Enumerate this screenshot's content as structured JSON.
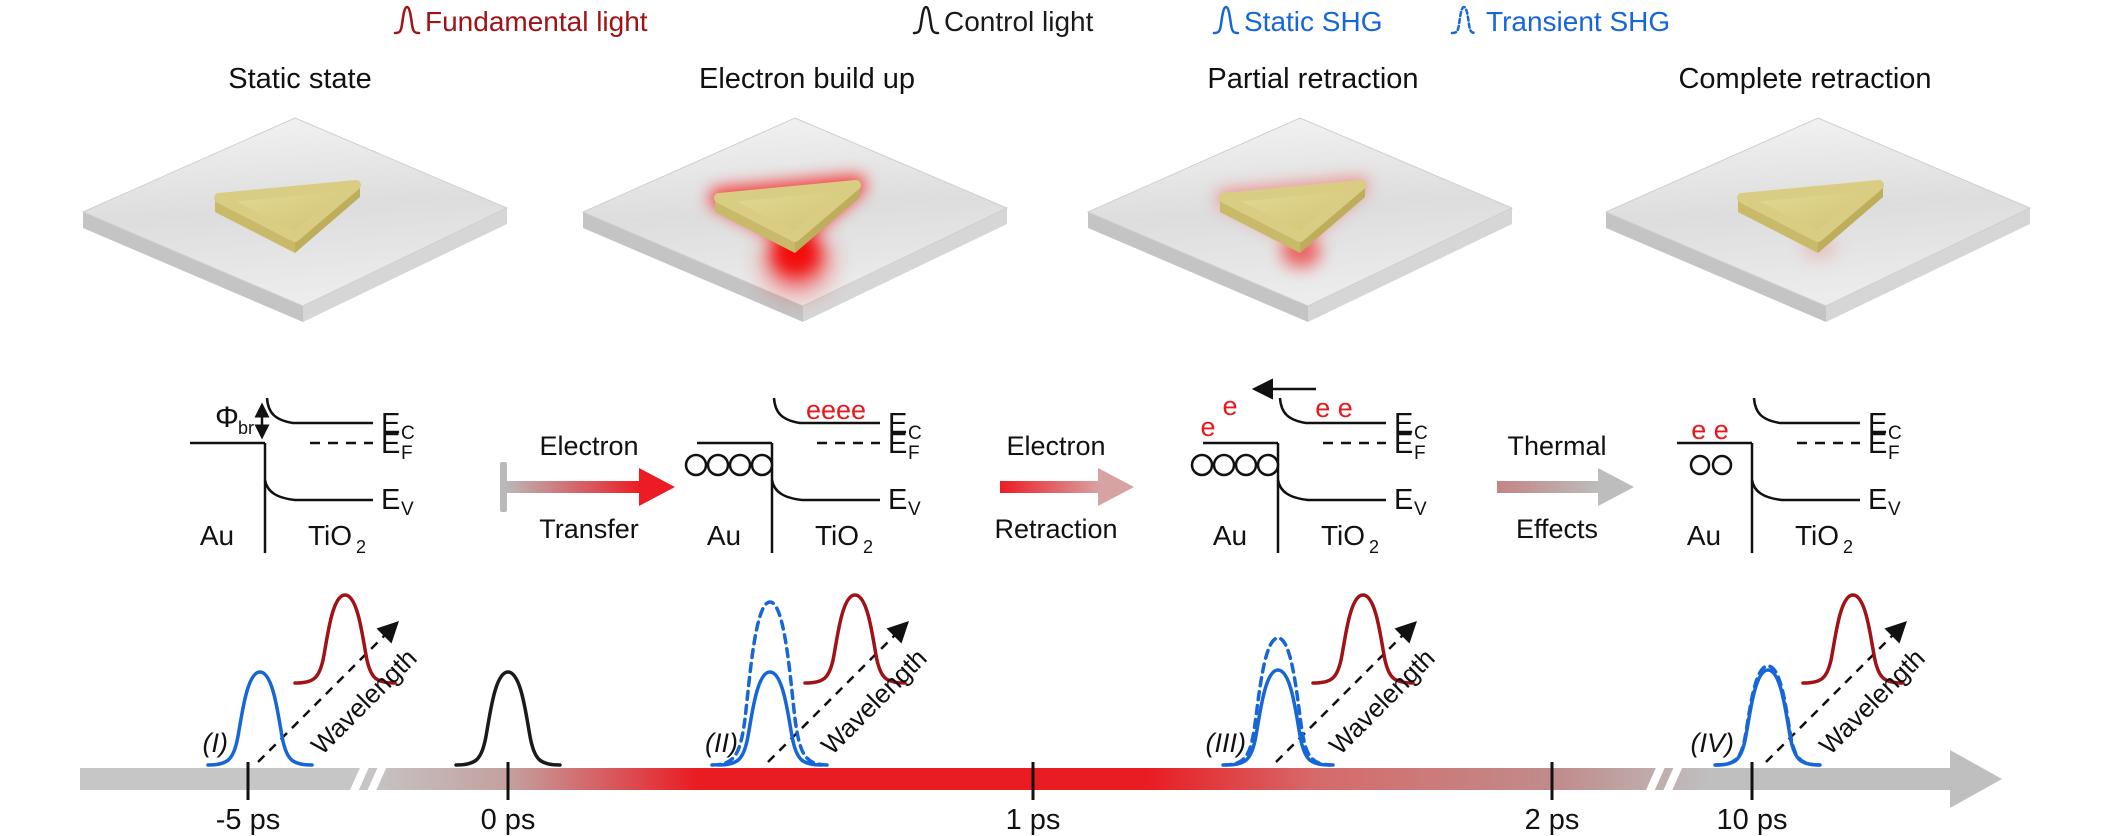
{
  "legend": {
    "items": [
      {
        "label": "Fundamental light",
        "color": "#a01216",
        "style": "solid"
      },
      {
        "label": "Control light",
        "color": "#1a1a1a",
        "style": "solid"
      },
      {
        "label": "Static SHG",
        "color": "#1766d8",
        "style": "solid"
      },
      {
        "label": "Transient SHG",
        "color": "#1766d8",
        "style": "dashed"
      }
    ]
  },
  "panels": [
    {
      "title": "Static state"
    },
    {
      "title": "Electron build up"
    },
    {
      "title": "Partial retraction"
    },
    {
      "title": "Complete retraction"
    }
  ],
  "transitions": [
    {
      "line1": "Electron",
      "line2": "Transfer"
    },
    {
      "line1": "Electron",
      "line2": "Retraction"
    },
    {
      "line1": "Thermal",
      "line2": "Effects"
    }
  ],
  "band": {
    "phi": "Φ",
    "phi_sub": "br",
    "E": "E",
    "sub_C": "C",
    "sub_F": "F",
    "sub_V": "V",
    "au": "Au",
    "tio": "TiO",
    "tio_sub": "2",
    "electrons_built": "eeee",
    "electrons_remaining": "e e",
    "electron": "e",
    "electrons_returned": "e e"
  },
  "timeline": {
    "ticks": [
      "-5 ps",
      "0 ps",
      "1 ps",
      "2 ps",
      "10 ps"
    ],
    "stages": [
      "(I)",
      "(II)",
      "(III)",
      "(IV)"
    ],
    "wavelength": "Wavelength",
    "colors": {
      "gray": "#c6c6c6",
      "red": "#e91c22"
    }
  }
}
